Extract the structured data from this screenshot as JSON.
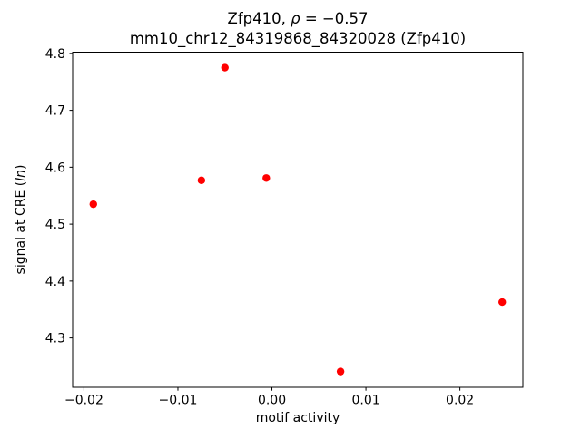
{
  "title": {
    "line1_prefix": "Zfp410, ",
    "line1_rho": "ρ",
    "line1_suffix": " = −0.57",
    "line2": "mm10_chr12_84319868_84320028 (Zfp410)"
  },
  "axes": {
    "xlabel": "motif activity",
    "ylabel_prefix": "signal at CRE (",
    "ylabel_italic": "ln",
    "ylabel_suffix": ")"
  },
  "chart_data": {
    "type": "scatter",
    "title": "Zfp410, ρ = −0.57",
    "subtitle": "mm10_chr12_84319868_84320028 (Zfp410)",
    "xlabel": "motif activity",
    "ylabel": "signal at CRE (ln)",
    "marker_color": "#ff0000",
    "marker_size_px": 4.2,
    "grid": false,
    "xlim": [
      -0.0212,
      0.0267
    ],
    "ylim": [
      4.213,
      4.802
    ],
    "xticks": {
      "values": [
        -0.02,
        -0.01,
        0.0,
        0.01,
        0.02
      ],
      "labels": [
        "−0.02",
        "−0.01",
        "0.00",
        "0.01",
        "0.02"
      ]
    },
    "yticks": {
      "values": [
        4.3,
        4.4,
        4.5,
        4.6,
        4.7,
        4.8
      ],
      "labels": [
        "4.3",
        "4.4",
        "4.5",
        "4.6",
        "4.7",
        "4.8"
      ]
    },
    "points": [
      {
        "x": -0.019,
        "y": 4.535
      },
      {
        "x": -0.0075,
        "y": 4.577
      },
      {
        "x": -0.005,
        "y": 4.775
      },
      {
        "x": -0.0006,
        "y": 4.581
      },
      {
        "x": 0.0073,
        "y": 4.241
      },
      {
        "x": 0.0245,
        "y": 4.363
      }
    ]
  }
}
